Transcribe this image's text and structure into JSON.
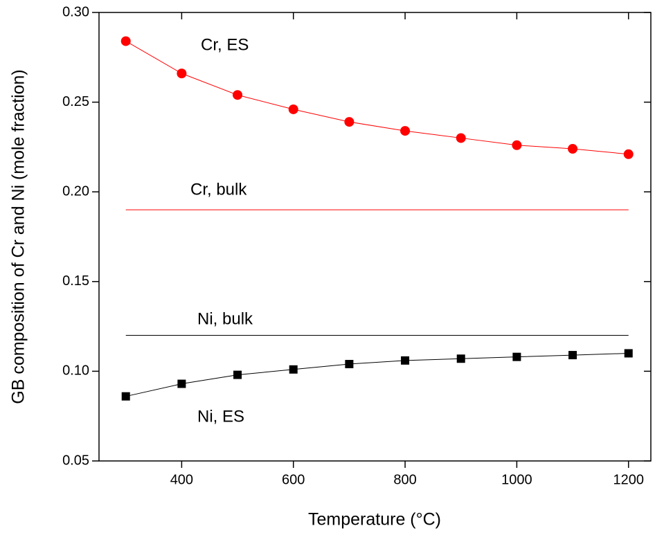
{
  "chart_data": {
    "type": "line",
    "xlabel": "Temperature (°C)",
    "ylabel": "GB composition of Cr and Ni (mole fraction)",
    "xlim": [
      252,
      1240
    ],
    "ylim": [
      0.05,
      0.3
    ],
    "xticks": [
      400,
      600,
      800,
      1000,
      1200
    ],
    "yticks": [
      {
        "value": 0.05,
        "label": "0.05"
      },
      {
        "value": 0.1,
        "label": "0.10"
      },
      {
        "value": 0.15,
        "label": "0.15"
      },
      {
        "value": 0.2,
        "label": "0.20"
      },
      {
        "value": 0.25,
        "label": "0.25"
      },
      {
        "value": 0.3,
        "label": "0.30"
      }
    ],
    "series": [
      {
        "name": "Cr, ES",
        "color": "#ff0000",
        "marker": "circle",
        "x": [
          300,
          400,
          500,
          600,
          700,
          800,
          900,
          1000,
          1100,
          1200
        ],
        "values": [
          0.284,
          0.266,
          0.254,
          0.246,
          0.239,
          0.234,
          0.23,
          0.226,
          0.224,
          0.221
        ]
      },
      {
        "name": "Cr, bulk",
        "color": "#ff0000",
        "marker": "none",
        "x": [
          300,
          1200
        ],
        "values": [
          0.19,
          0.19
        ]
      },
      {
        "name": "Ni, bulk",
        "color": "#000000",
        "marker": "none",
        "x": [
          300,
          1200
        ],
        "values": [
          0.12,
          0.12
        ]
      },
      {
        "name": "Ni, ES",
        "color": "#000000",
        "marker": "square",
        "x": [
          300,
          400,
          500,
          600,
          700,
          800,
          900,
          1000,
          1100,
          1200
        ],
        "values": [
          0.086,
          0.093,
          0.098,
          0.101,
          0.104,
          0.106,
          0.107,
          0.108,
          0.109,
          0.11
        ]
      }
    ]
  }
}
